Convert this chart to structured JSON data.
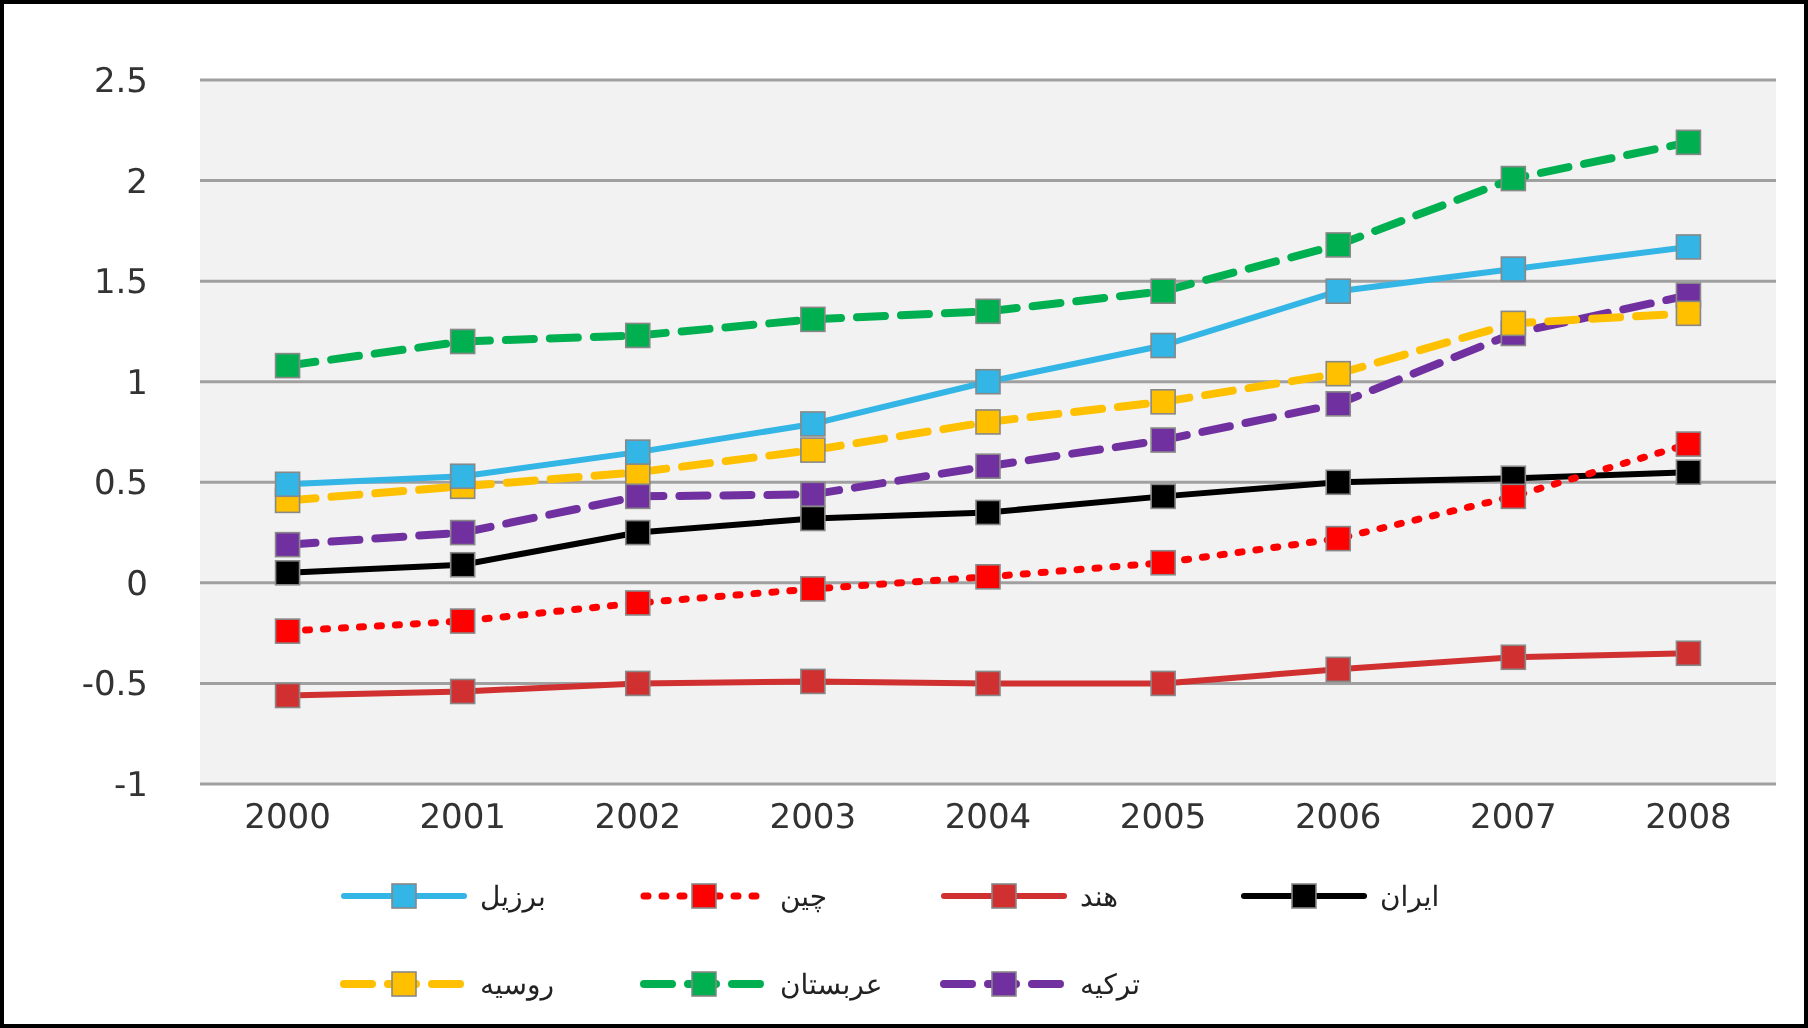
{
  "chart_data": {
    "type": "line",
    "categories": [
      "2000",
      "2001",
      "2002",
      "2003",
      "2004",
      "2005",
      "2006",
      "2007",
      "2008"
    ],
    "ylim": [
      -1,
      2.5
    ],
    "yticks": [
      -1,
      -0.5,
      0,
      0.5,
      1,
      1.5,
      2,
      2.5
    ],
    "grid": "y",
    "legend": "bottom",
    "marker": "square",
    "series": [
      {
        "name": "برزیل",
        "color": "#33b5e5",
        "line_style": "solid",
        "values": [
          0.49,
          0.53,
          0.65,
          0.79,
          1.0,
          1.18,
          1.45,
          1.56,
          1.67
        ]
      },
      {
        "name": "چین",
        "color": "#ff0000",
        "line_style": "dotted",
        "values": [
          -0.24,
          -0.19,
          -0.1,
          -0.03,
          0.03,
          0.1,
          0.22,
          0.43,
          0.69
        ]
      },
      {
        "name": "هند",
        "color": "#d03030",
        "line_style": "solid",
        "values": [
          -0.56,
          -0.54,
          -0.5,
          -0.49,
          -0.5,
          -0.5,
          -0.43,
          -0.37,
          -0.35
        ]
      },
      {
        "name": "ایران",
        "color": "#000000",
        "line_style": "solid",
        "values": [
          0.05,
          0.09,
          0.25,
          0.32,
          0.35,
          0.43,
          0.5,
          0.52,
          0.55
        ]
      },
      {
        "name": "روسیه",
        "color": "#ffc000",
        "line_style": "dashed",
        "values": [
          0.41,
          0.48,
          0.55,
          0.66,
          0.8,
          0.9,
          1.04,
          1.29,
          1.34
        ]
      },
      {
        "name": "عربستان",
        "color": "#00b050",
        "line_style": "dashed",
        "values": [
          1.08,
          1.2,
          1.23,
          1.31,
          1.35,
          1.45,
          1.68,
          2.01,
          2.19
        ]
      },
      {
        "name": "ترکیه",
        "color": "#7030a0",
        "line_style": "dashed",
        "values": [
          0.19,
          0.25,
          0.43,
          0.44,
          0.58,
          0.71,
          0.89,
          1.24,
          1.43
        ]
      }
    ]
  }
}
